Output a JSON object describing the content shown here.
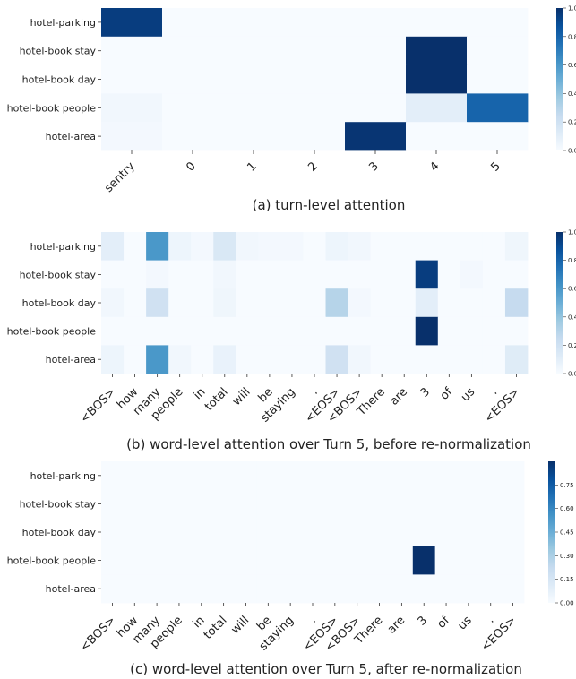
{
  "chart_data": [
    {
      "type": "heatmap",
      "caption": "(a) turn-level attention",
      "rows": [
        "hotel-parking",
        "hotel-book stay",
        "hotel-book day",
        "hotel-book people",
        "hotel-area"
      ],
      "columns": [
        "sentry",
        "0",
        "1",
        "2",
        "3",
        "4",
        "5"
      ],
      "values": [
        [
          0.95,
          0.0,
          0.0,
          0.0,
          0.0,
          0.0,
          0.0
        ],
        [
          0.0,
          0.0,
          0.0,
          0.0,
          0.0,
          1.0,
          0.0
        ],
        [
          0.0,
          0.0,
          0.0,
          0.0,
          0.0,
          1.0,
          0.0
        ],
        [
          0.03,
          0.0,
          0.0,
          0.0,
          0.0,
          0.1,
          0.8
        ],
        [
          0.02,
          0.0,
          0.0,
          0.0,
          0.98,
          0.0,
          0.0
        ]
      ],
      "colorbar": {
        "ticks": [
          "0.0",
          "0.2",
          "0.4",
          "0.6",
          "0.8",
          "1.0"
        ],
        "range": [
          0,
          1
        ]
      },
      "colormap": [
        "#f7fbff",
        "#deebf7",
        "#c6dbef",
        "#9ecae1",
        "#6baed6",
        "#4292c6",
        "#2171b5",
        "#08519c",
        "#08306b"
      ]
    },
    {
      "type": "heatmap",
      "caption": "(b) word-level attention over Turn 5, before re-normalization",
      "rows": [
        "hotel-parking",
        "hotel-book stay",
        "hotel-book day",
        "hotel-book people",
        "hotel-area"
      ],
      "columns": [
        "<BOS>",
        "how",
        "many",
        "people",
        "in",
        "total",
        "will",
        "be",
        "staying",
        ".",
        "<EOS>",
        "<BOS>",
        "There",
        "are",
        "3",
        "of",
        "us",
        ".",
        "<EOS>"
      ],
      "values": [
        [
          0.1,
          0.0,
          0.6,
          0.05,
          0.02,
          0.15,
          0.03,
          0.02,
          0.02,
          0.0,
          0.05,
          0.03,
          0.0,
          0.0,
          0.0,
          0.0,
          0.0,
          0.0,
          0.04
        ],
        [
          0.0,
          0.0,
          0.02,
          0.0,
          0.0,
          0.03,
          0.0,
          0.0,
          0.0,
          0.0,
          0.0,
          0.0,
          0.0,
          0.0,
          0.95,
          0.0,
          0.02,
          0.0,
          0.0
        ],
        [
          0.03,
          0.0,
          0.2,
          0.0,
          0.0,
          0.04,
          0.0,
          0.0,
          0.0,
          0.0,
          0.3,
          0.02,
          0.0,
          0.0,
          0.1,
          0.0,
          0.0,
          0.0,
          0.25
        ],
        [
          0.0,
          0.0,
          0.0,
          0.0,
          0.0,
          0.0,
          0.0,
          0.0,
          0.0,
          0.0,
          0.0,
          0.0,
          0.0,
          0.0,
          1.0,
          0.0,
          0.0,
          0.0,
          0.0
        ],
        [
          0.05,
          0.0,
          0.6,
          0.03,
          0.0,
          0.07,
          0.0,
          0.0,
          0.0,
          0.0,
          0.2,
          0.03,
          0.0,
          0.0,
          0.0,
          0.0,
          0.0,
          0.0,
          0.12
        ]
      ],
      "colorbar": {
        "ticks": [
          "0.0",
          "0.2",
          "0.4",
          "0.6",
          "0.8",
          "1.0"
        ],
        "range": [
          0,
          1
        ]
      },
      "colormap": [
        "#f7fbff",
        "#deebf7",
        "#c6dbef",
        "#9ecae1",
        "#6baed6",
        "#4292c6",
        "#2171b5",
        "#08519c",
        "#08306b"
      ]
    },
    {
      "type": "heatmap",
      "caption": "(c) word-level attention over Turn 5, after re-normalization",
      "rows": [
        "hotel-parking",
        "hotel-book stay",
        "hotel-book day",
        "hotel-book people",
        "hotel-area"
      ],
      "columns": [
        "<BOS>",
        "how",
        "many",
        "people",
        "in",
        "total",
        "will",
        "be",
        "staying",
        ".",
        "<EOS>",
        "<BOS>",
        "There",
        "are",
        "3",
        "of",
        "us",
        ".",
        "<EOS>"
      ],
      "values": [
        [
          0,
          0,
          0,
          0,
          0,
          0,
          0,
          0,
          0,
          0,
          0,
          0,
          0,
          0,
          0,
          0,
          0,
          0,
          0
        ],
        [
          0,
          0,
          0,
          0,
          0,
          0,
          0,
          0,
          0,
          0,
          0,
          0,
          0,
          0,
          0,
          0,
          0,
          0,
          0
        ],
        [
          0,
          0,
          0,
          0,
          0,
          0,
          0,
          0,
          0,
          0,
          0,
          0,
          0,
          0,
          0,
          0,
          0,
          0,
          0
        ],
        [
          0,
          0,
          0,
          0,
          0,
          0,
          0,
          0,
          0,
          0,
          0,
          0,
          0,
          0,
          0.9,
          0,
          0,
          0,
          0
        ],
        [
          0,
          0,
          0,
          0,
          0,
          0,
          0,
          0,
          0,
          0,
          0,
          0,
          0,
          0,
          0,
          0,
          0,
          0,
          0
        ]
      ],
      "colorbar": {
        "ticks": [
          "0.00",
          "0.15",
          "0.30",
          "0.45",
          "0.60",
          "0.75"
        ],
        "range": [
          0,
          0.9
        ]
      },
      "colormap": [
        "#f7fbff",
        "#deebf7",
        "#c6dbef",
        "#9ecae1",
        "#6baed6",
        "#4292c6",
        "#2171b5",
        "#08519c",
        "#08306b"
      ]
    }
  ]
}
